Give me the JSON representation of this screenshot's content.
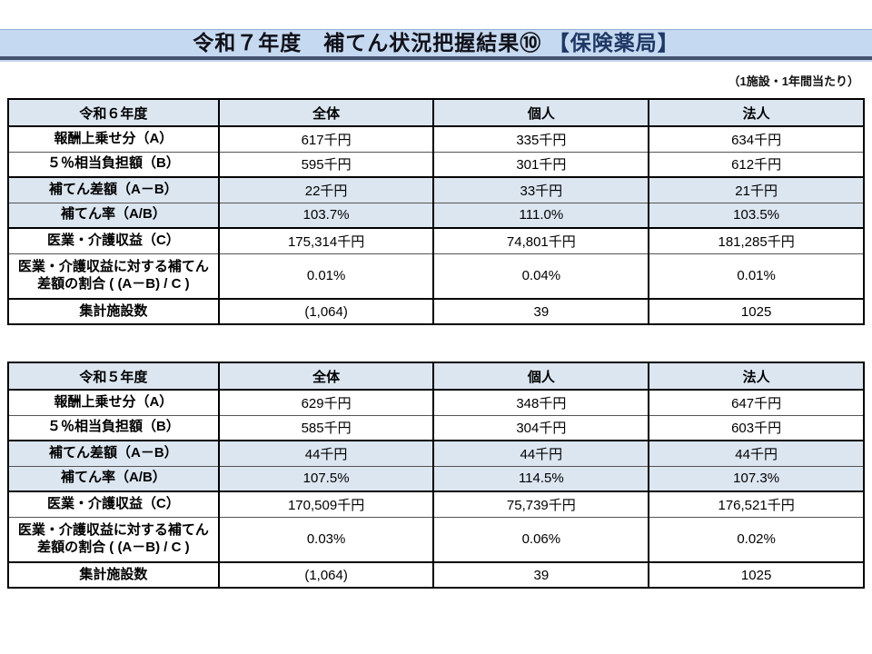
{
  "page": {
    "title_main": "令和７年度　補てん状況把握結果⑩ ",
    "title_em": "【保険薬局】",
    "note": "（1施設・1年間当たり）",
    "colors": {
      "band_bg": "#c5d9f1",
      "band_border": "#45526e",
      "row_shade": "#dce6f1",
      "title_em_color": "#1f3864",
      "table_border": "#000000"
    }
  },
  "tables": [
    {
      "year_label": "令和６年度",
      "columns": [
        "全体",
        "個人",
        "法人"
      ],
      "rows": [
        {
          "label": "報酬上乗せ分（A）",
          "values": [
            "617千円",
            "335千円",
            "634千円"
          ],
          "shaded": false,
          "group_end": false,
          "tall": false
        },
        {
          "label": "５％相当負担額（B）",
          "values": [
            "595千円",
            "301千円",
            "612千円"
          ],
          "shaded": false,
          "group_end": true,
          "tall": false
        },
        {
          "label": "補てん差額（A－B）",
          "values": [
            "22千円",
            "33千円",
            "21千円"
          ],
          "shaded": true,
          "group_end": false,
          "tall": false
        },
        {
          "label": "補てん率（A/B）",
          "values": [
            "103.7%",
            "111.0%",
            "103.5%"
          ],
          "shaded": true,
          "group_end": true,
          "tall": false
        },
        {
          "label": "医業・介護収益（C）",
          "values": [
            "175,314千円",
            "74,801千円",
            "181,285千円"
          ],
          "shaded": false,
          "group_end": false,
          "tall": false
        },
        {
          "label": "医業・介護収益に対する補てん差額の割合 ( (A－B) / C )",
          "values": [
            "0.01%",
            "0.04%",
            "0.01%"
          ],
          "shaded": false,
          "group_end": true,
          "tall": true
        },
        {
          "label": "集計施設数",
          "values": [
            "(1,064)",
            "39",
            "1025"
          ],
          "shaded": false,
          "group_end": false,
          "tall": false
        }
      ]
    },
    {
      "year_label": "令和５年度",
      "columns": [
        "全体",
        "個人",
        "法人"
      ],
      "rows": [
        {
          "label": "報酬上乗せ分（A）",
          "values": [
            "629千円",
            "348千円",
            "647千円"
          ],
          "shaded": false,
          "group_end": false,
          "tall": false
        },
        {
          "label": "５％相当負担額（B）",
          "values": [
            "585千円",
            "304千円",
            "603千円"
          ],
          "shaded": false,
          "group_end": true,
          "tall": false
        },
        {
          "label": "補てん差額（A－B）",
          "values": [
            "44千円",
            "44千円",
            "44千円"
          ],
          "shaded": true,
          "group_end": false,
          "tall": false
        },
        {
          "label": "補てん率（A/B）",
          "values": [
            "107.5%",
            "114.5%",
            "107.3%"
          ],
          "shaded": true,
          "group_end": true,
          "tall": false
        },
        {
          "label": "医業・介護収益（C）",
          "values": [
            "170,509千円",
            "75,739千円",
            "176,521千円"
          ],
          "shaded": false,
          "group_end": false,
          "tall": false
        },
        {
          "label": "医業・介護収益に対する補てん差額の割合 ( (A－B) / C )",
          "values": [
            "0.03%",
            "0.06%",
            "0.02%"
          ],
          "shaded": false,
          "group_end": true,
          "tall": true
        },
        {
          "label": "集計施設数",
          "values": [
            "(1,064)",
            "39",
            "1025"
          ],
          "shaded": false,
          "group_end": false,
          "tall": false
        }
      ]
    }
  ]
}
